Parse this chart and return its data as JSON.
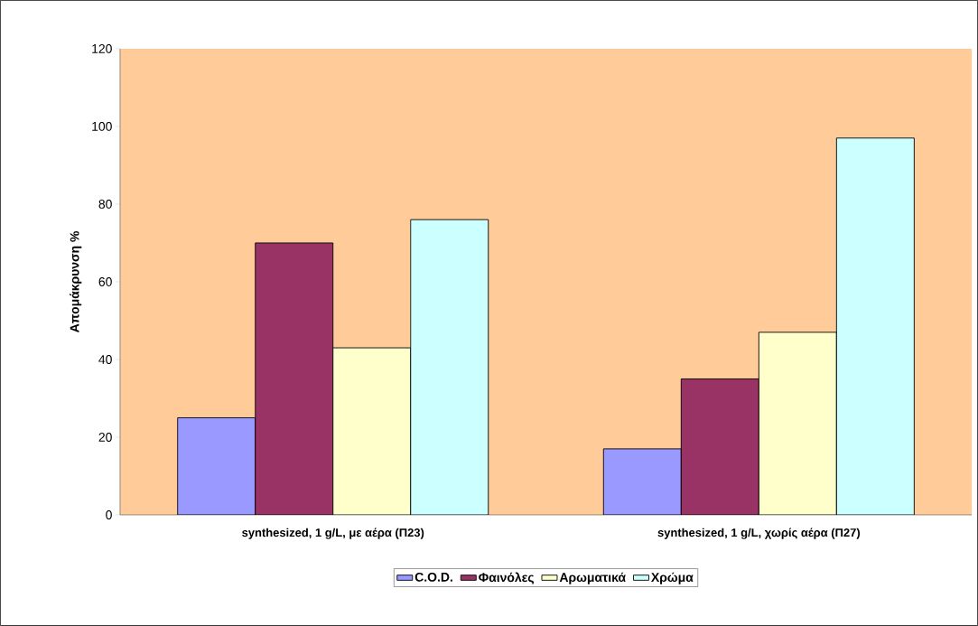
{
  "chart_data": {
    "type": "bar",
    "ylabel": "Απομάκρυνση %",
    "categories": [
      "synthesized, 1 g/L, με αέρα (Π23)",
      "synthesized, 1 g/L, χωρίς αέρα (Π27)"
    ],
    "series": [
      {
        "name": "C.O.D.",
        "color": "#9999ff",
        "values": [
          25,
          17
        ]
      },
      {
        "name": "Φαινόλες",
        "color": "#993366",
        "values": [
          70,
          35
        ]
      },
      {
        "name": "Αρωματικά",
        "color": "#ffffcc",
        "values": [
          43,
          47
        ]
      },
      {
        "name": "Χρώμα",
        "color": "#ccffff",
        "values": [
          76,
          97
        ]
      }
    ],
    "ylim": [
      0,
      120
    ],
    "yticks": [
      0,
      20,
      40,
      60,
      80,
      100,
      120
    ],
    "grid": false,
    "legend": "bottom"
  }
}
